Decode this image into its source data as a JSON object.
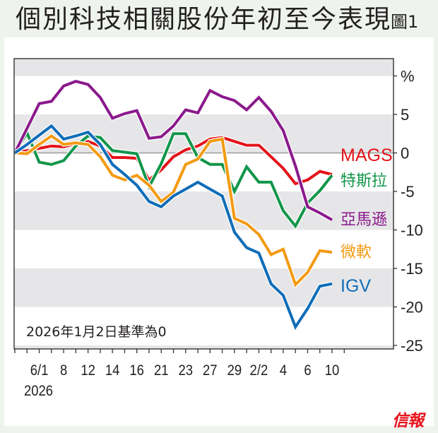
{
  "header": {
    "title": "個別科技相關股份年初至今表現",
    "figure_label": "圖1"
  },
  "brand": {
    "logo_text": "信報",
    "color": "#e8101a"
  },
  "chart_data": {
    "type": "line",
    "title": "個別科技相關股份年初至今表現",
    "annotation": "2026年1月2日基準為0",
    "ylabel": "%",
    "xlabel": "",
    "ylim": [
      -25,
      12
    ],
    "yticks": [
      10,
      5,
      0,
      -5,
      -10,
      -15,
      -20,
      -25
    ],
    "ytick_labels": [
      "%",
      "5",
      "0",
      "-5",
      "-10",
      "-15",
      "-20",
      "-25"
    ],
    "grid": "alternating horizontal bands",
    "x": [
      "1/2",
      "1/5",
      "1/6",
      "1/7",
      "1/8",
      "1/9",
      "1/12",
      "1/13",
      "1/14",
      "1/15",
      "1/16",
      "1/20",
      "1/21",
      "1/22",
      "1/23",
      "1/26",
      "1/27",
      "1/28",
      "1/29",
      "1/30",
      "2/2",
      "2/3",
      "2/4",
      "2/5",
      "2/6",
      "2/9",
      "2/10"
    ],
    "xtick_labels": [
      {
        "index": 2,
        "label": "6/1"
      },
      {
        "index": 4,
        "label": "8"
      },
      {
        "index": 6,
        "label": "12"
      },
      {
        "index": 8,
        "label": "14"
      },
      {
        "index": 10,
        "label": "16"
      },
      {
        "index": 12,
        "label": "21"
      },
      {
        "index": 14,
        "label": "23"
      },
      {
        "index": 16,
        "label": "27"
      },
      {
        "index": 18,
        "label": "29"
      },
      {
        "index": 20,
        "label": "2/2"
      },
      {
        "index": 22,
        "label": "4"
      },
      {
        "index": 24,
        "label": "6"
      },
      {
        "index": 26,
        "label": "10"
      }
    ],
    "year_label": "2026",
    "legend_placement": "right-end labels",
    "series": [
      {
        "name": "MAGS",
        "color": "#e3141b",
        "values": [
          0,
          0.3,
          0.6,
          0.9,
          0.8,
          1.2,
          1.5,
          0.9,
          -0.6,
          -0.6,
          -0.7,
          -3.5,
          -2.2,
          -0.5,
          0.4,
          0.9,
          1.8,
          2.0,
          1.5,
          1.0,
          1.0,
          -0.5,
          -2.0,
          -4.0,
          -3.5,
          -2.4,
          -2.8
        ]
      },
      {
        "name": "特斯拉",
        "color": "#12964a",
        "values": [
          0,
          2.6,
          -1.2,
          -1.5,
          -1.0,
          0.9,
          2.2,
          2.0,
          0.3,
          0.1,
          -0.1,
          -4.4,
          -1.4,
          2.5,
          2.5,
          -0.6,
          -1.5,
          -1.5,
          -5.0,
          -1.8,
          -3.8,
          -3.8,
          -7.5,
          -9.5,
          -6.5,
          -4.9,
          -2.9
        ]
      },
      {
        "name": "亞馬遜",
        "color": "#8b1a8c",
        "values": [
          0,
          3.2,
          6.4,
          6.7,
          8.7,
          9.3,
          8.9,
          7.2,
          4.5,
          5.1,
          5.5,
          1.9,
          2.1,
          3.5,
          5.6,
          5.2,
          8.1,
          7.3,
          6.8,
          5.6,
          7.2,
          5.4,
          2.9,
          -1.7,
          -7.0,
          -7.8,
          -8.7
        ]
      },
      {
        "name": "微軟",
        "color": "#f39a12",
        "values": [
          0,
          -0.1,
          1.1,
          2.2,
          1.1,
          1.3,
          1.1,
          -0.5,
          -2.9,
          -3.5,
          -2.9,
          -4.2,
          -6.3,
          -5.1,
          -1.5,
          -0.8,
          1.5,
          1.8,
          -8.5,
          -9.2,
          -10.6,
          -13.2,
          -12.5,
          -17.1,
          -15.5,
          -12.7,
          -12.9
        ]
      },
      {
        "name": "IGV",
        "color": "#0f6db8",
        "values": [
          0,
          1.1,
          2.3,
          3.5,
          1.8,
          2.2,
          2.7,
          1.1,
          -1.5,
          -2.8,
          -4.2,
          -6.3,
          -7.0,
          -5.6,
          -4.7,
          -3.8,
          -4.7,
          -5.6,
          -10.3,
          -12.3,
          -13.0,
          -17.0,
          -18.5,
          -22.6,
          -20.2,
          -17.3,
          -17.0
        ]
      }
    ]
  }
}
